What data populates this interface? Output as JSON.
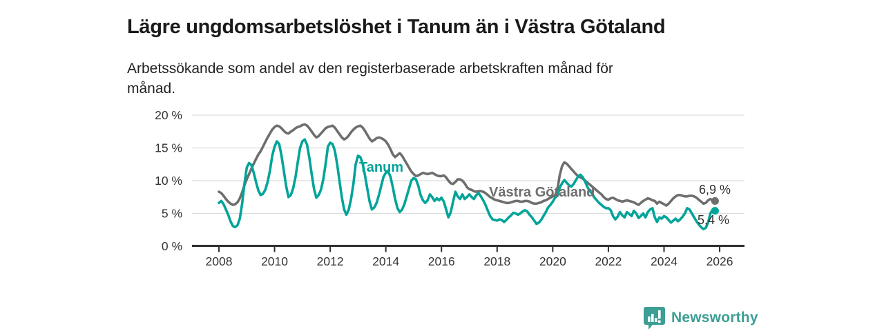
{
  "header": {
    "title": "Lägre ungdomsarbetslöshet i Tanum än i Västra Götaland",
    "subtitle": "Arbetssökande som andel av den registerbaserade arbetskraften månad för månad."
  },
  "footer": {
    "brand": "Newsworthy",
    "brand_color": "#3d9e93",
    "logo_icon": "bar-chart-speech-bubble-icon"
  },
  "chart_data": {
    "type": "line",
    "title": "Lägre ungdomsarbetslöshet i Tanum än i Västra Götaland",
    "subtitle": "Arbetssökande som andel av den registerbaserade arbetskraften månad för månad.",
    "x_unit": "month",
    "x_start_year": 2008,
    "x_tick_labels": [
      "2008",
      "2010",
      "2012",
      "2014",
      "2016",
      "2018",
      "2020",
      "2022",
      "2024",
      "2026"
    ],
    "y_tick_values": [
      0,
      5,
      10,
      15,
      20
    ],
    "y_tick_labels": [
      "0 %",
      "5 %",
      "10 %",
      "15 %",
      "20 %"
    ],
    "ylim": [
      0,
      20
    ],
    "grid": true,
    "legend_position": "inline-labels",
    "colors": {
      "grid": "#dcdcdc",
      "axis": "#2f2f2f",
      "tick_text": "#333333",
      "value_label_text": "#333333"
    },
    "series": [
      {
        "name": "Västra Götaland",
        "color": "#6e6e6e",
        "end_label": "6,9 %",
        "end_value": 6.9,
        "values": [
          8.3,
          8.1,
          7.7,
          7.2,
          6.8,
          6.5,
          6.3,
          6.4,
          6.7,
          7.3,
          8.2,
          9.3,
          10.2,
          11.0,
          11.8,
          12.6,
          13.3,
          14.0,
          14.5,
          15.2,
          15.9,
          16.6,
          17.2,
          17.8,
          18.2,
          18.4,
          18.3,
          18.0,
          17.6,
          17.3,
          17.2,
          17.5,
          17.7,
          18.0,
          18.2,
          18.3,
          18.5,
          18.6,
          18.4,
          18.0,
          17.5,
          17.0,
          16.6,
          16.8,
          17.2,
          17.6,
          18.0,
          18.2,
          18.3,
          18.4,
          18.1,
          17.6,
          17.1,
          16.6,
          16.3,
          16.5,
          16.9,
          17.4,
          17.8,
          18.1,
          18.3,
          18.4,
          18.1,
          17.6,
          17.0,
          16.4,
          16.0,
          16.2,
          16.5,
          16.6,
          16.5,
          16.3,
          16.0,
          15.5,
          14.8,
          14.0,
          13.6,
          13.9,
          14.2,
          13.8,
          13.2,
          12.6,
          12.0,
          11.4,
          11.0,
          10.7,
          10.8,
          11.0,
          11.2,
          11.1,
          11.0,
          11.1,
          11.2,
          11.0,
          10.8,
          10.7,
          10.7,
          10.8,
          10.5,
          10.0,
          9.6,
          9.5,
          9.8,
          10.2,
          10.2,
          10.0,
          9.6,
          9.0,
          8.7,
          8.6,
          8.4,
          8.3,
          8.4,
          8.4,
          8.3,
          8.1,
          7.8,
          7.5,
          7.3,
          7.1,
          7.0,
          6.9,
          6.8,
          6.7,
          6.6,
          6.6,
          6.7,
          6.8,
          6.9,
          6.9,
          6.8,
          6.8,
          6.9,
          6.9,
          6.8,
          6.6,
          6.5,
          6.5,
          6.6,
          6.7,
          6.9,
          7.0,
          7.2,
          7.4,
          7.6,
          7.8,
          8.6,
          10.8,
          12.2,
          12.8,
          12.6,
          12.2,
          11.8,
          11.4,
          11.0,
          10.7,
          10.5,
          10.3,
          10.0,
          9.7,
          9.4,
          9.1,
          8.8,
          8.5,
          8.2,
          7.9,
          7.5,
          7.2,
          7.1,
          7.3,
          7.4,
          7.2,
          7.0,
          6.9,
          6.8,
          6.9,
          7.0,
          6.9,
          6.8,
          6.7,
          6.5,
          6.3,
          6.6,
          6.9,
          7.1,
          7.3,
          7.2,
          7.0,
          6.9,
          6.5,
          6.8,
          6.6,
          6.4,
          6.2,
          6.5,
          6.9,
          7.3,
          7.6,
          7.8,
          7.8,
          7.7,
          7.6,
          7.6,
          7.7,
          7.7,
          7.6,
          7.4,
          7.1,
          6.8,
          6.5,
          6.6,
          7.0,
          7.2,
          7.0,
          6.9
        ]
      },
      {
        "name": "Tanum",
        "color": "#00a499",
        "end_label": "5,4 %",
        "end_value": 5.4,
        "values": [
          6.6,
          6.9,
          6.4,
          5.6,
          4.8,
          3.8,
          3.1,
          2.9,
          3.2,
          4.2,
          6.5,
          9.5,
          12.0,
          12.7,
          12.4,
          11.2,
          9.8,
          8.5,
          7.8,
          8.0,
          8.6,
          9.8,
          11.5,
          13.8,
          15.2,
          16.0,
          15.6,
          13.8,
          11.5,
          9.2,
          7.5,
          7.8,
          8.8,
          10.5,
          12.8,
          15.0,
          16.0,
          16.3,
          15.5,
          13.5,
          11.0,
          8.8,
          7.4,
          7.8,
          8.6,
          10.2,
          12.5,
          15.2,
          15.8,
          15.6,
          14.6,
          12.5,
          10.0,
          7.5,
          5.6,
          4.8,
          5.6,
          7.2,
          9.5,
          12.5,
          13.8,
          13.6,
          12.6,
          10.8,
          8.8,
          6.8,
          5.6,
          5.9,
          6.6,
          7.8,
          9.2,
          10.6,
          11.2,
          11.4,
          10.6,
          9.0,
          7.2,
          5.8,
          5.2,
          5.6,
          6.4,
          7.6,
          8.8,
          10.0,
          10.4,
          10.2,
          9.2,
          7.8,
          7.0,
          6.6,
          7.0,
          7.9,
          7.5,
          6.9,
          7.3,
          7.0,
          7.4,
          6.8,
          5.6,
          4.4,
          5.2,
          6.8,
          8.3,
          7.6,
          7.2,
          7.9,
          7.2,
          7.5,
          7.9,
          7.5,
          7.2,
          7.8,
          8.1,
          7.6,
          7.0,
          6.3,
          5.4,
          4.6,
          4.1,
          4.0,
          3.9,
          4.1,
          4.0,
          3.7,
          4.0,
          4.4,
          4.7,
          5.1,
          5.0,
          4.8,
          5.0,
          5.3,
          5.5,
          5.3,
          4.8,
          4.4,
          3.9,
          3.4,
          3.6,
          4.0,
          4.6,
          5.2,
          5.9,
          6.3,
          6.8,
          7.4,
          7.7,
          8.9,
          9.6,
          10.1,
          9.7,
          9.3,
          9.1,
          9.5,
          10.1,
          10.7,
          10.9,
          10.5,
          9.8,
          9.0,
          8.4,
          8.0,
          7.4,
          7.0,
          6.6,
          6.3,
          6.0,
          5.8,
          5.8,
          5.5,
          4.6,
          4.1,
          4.5,
          5.2,
          4.7,
          4.4,
          5.2,
          4.9,
          4.6,
          5.4,
          5.0,
          4.3,
          4.6,
          5.0,
          4.4,
          5.2,
          5.6,
          5.8,
          4.4,
          3.7,
          4.4,
          4.2,
          4.6,
          4.4,
          4.0,
          3.6,
          3.9,
          4.2,
          3.8,
          4.1,
          4.5,
          5.0,
          5.8,
          5.6,
          5.0,
          4.4,
          3.8,
          3.3,
          2.9,
          2.6,
          2.8,
          3.6,
          5.0,
          5.6,
          5.4
        ]
      }
    ]
  }
}
